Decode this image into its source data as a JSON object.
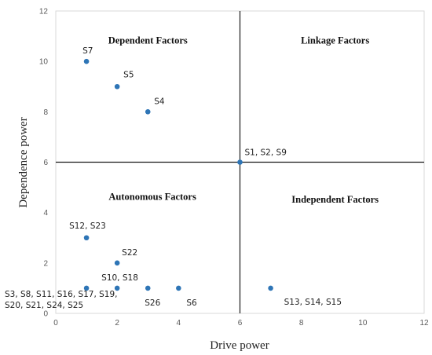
{
  "chart_data": {
    "type": "scatter",
    "xlabel": "Drive power",
    "ylabel": "Dependence power",
    "xlim": [
      0,
      12
    ],
    "ylim": [
      0,
      12
    ],
    "xticks": [
      0,
      2,
      4,
      6,
      8,
      10,
      12
    ],
    "yticks": [
      0,
      2,
      4,
      6,
      8,
      10,
      12
    ],
    "divider": {
      "x": 6,
      "y": 6
    },
    "grid": false,
    "marker_color": "#2e75b6",
    "quadrants": [
      {
        "label": "Dependent Factors",
        "position": "top-left"
      },
      {
        "label": "Linkage Factors",
        "position": "top-right"
      },
      {
        "label": "Autonomous Factors",
        "position": "bottom-left"
      },
      {
        "label": "Independent Factors",
        "position": "bottom-right"
      }
    ],
    "points": [
      {
        "x": 1,
        "y": 10,
        "label": "S7"
      },
      {
        "x": 2,
        "y": 9,
        "label": "S5"
      },
      {
        "x": 3,
        "y": 8,
        "label": "S4"
      },
      {
        "x": 6,
        "y": 6,
        "label": "S1, S2, S9"
      },
      {
        "x": 1,
        "y": 3,
        "label": "S12, S23"
      },
      {
        "x": 2,
        "y": 2,
        "label": "S22"
      },
      {
        "x": 2,
        "y": 1,
        "label": "S10, S18"
      },
      {
        "x": 1,
        "y": 1,
        "label": "S3, S8, S11, S16, S17, S19,\nS20, S21, S24, S25"
      },
      {
        "x": 3,
        "y": 1,
        "label": "S26"
      },
      {
        "x": 4,
        "y": 1,
        "label": "S6"
      },
      {
        "x": 7,
        "y": 1,
        "label": "S13, S14, S15"
      }
    ]
  }
}
